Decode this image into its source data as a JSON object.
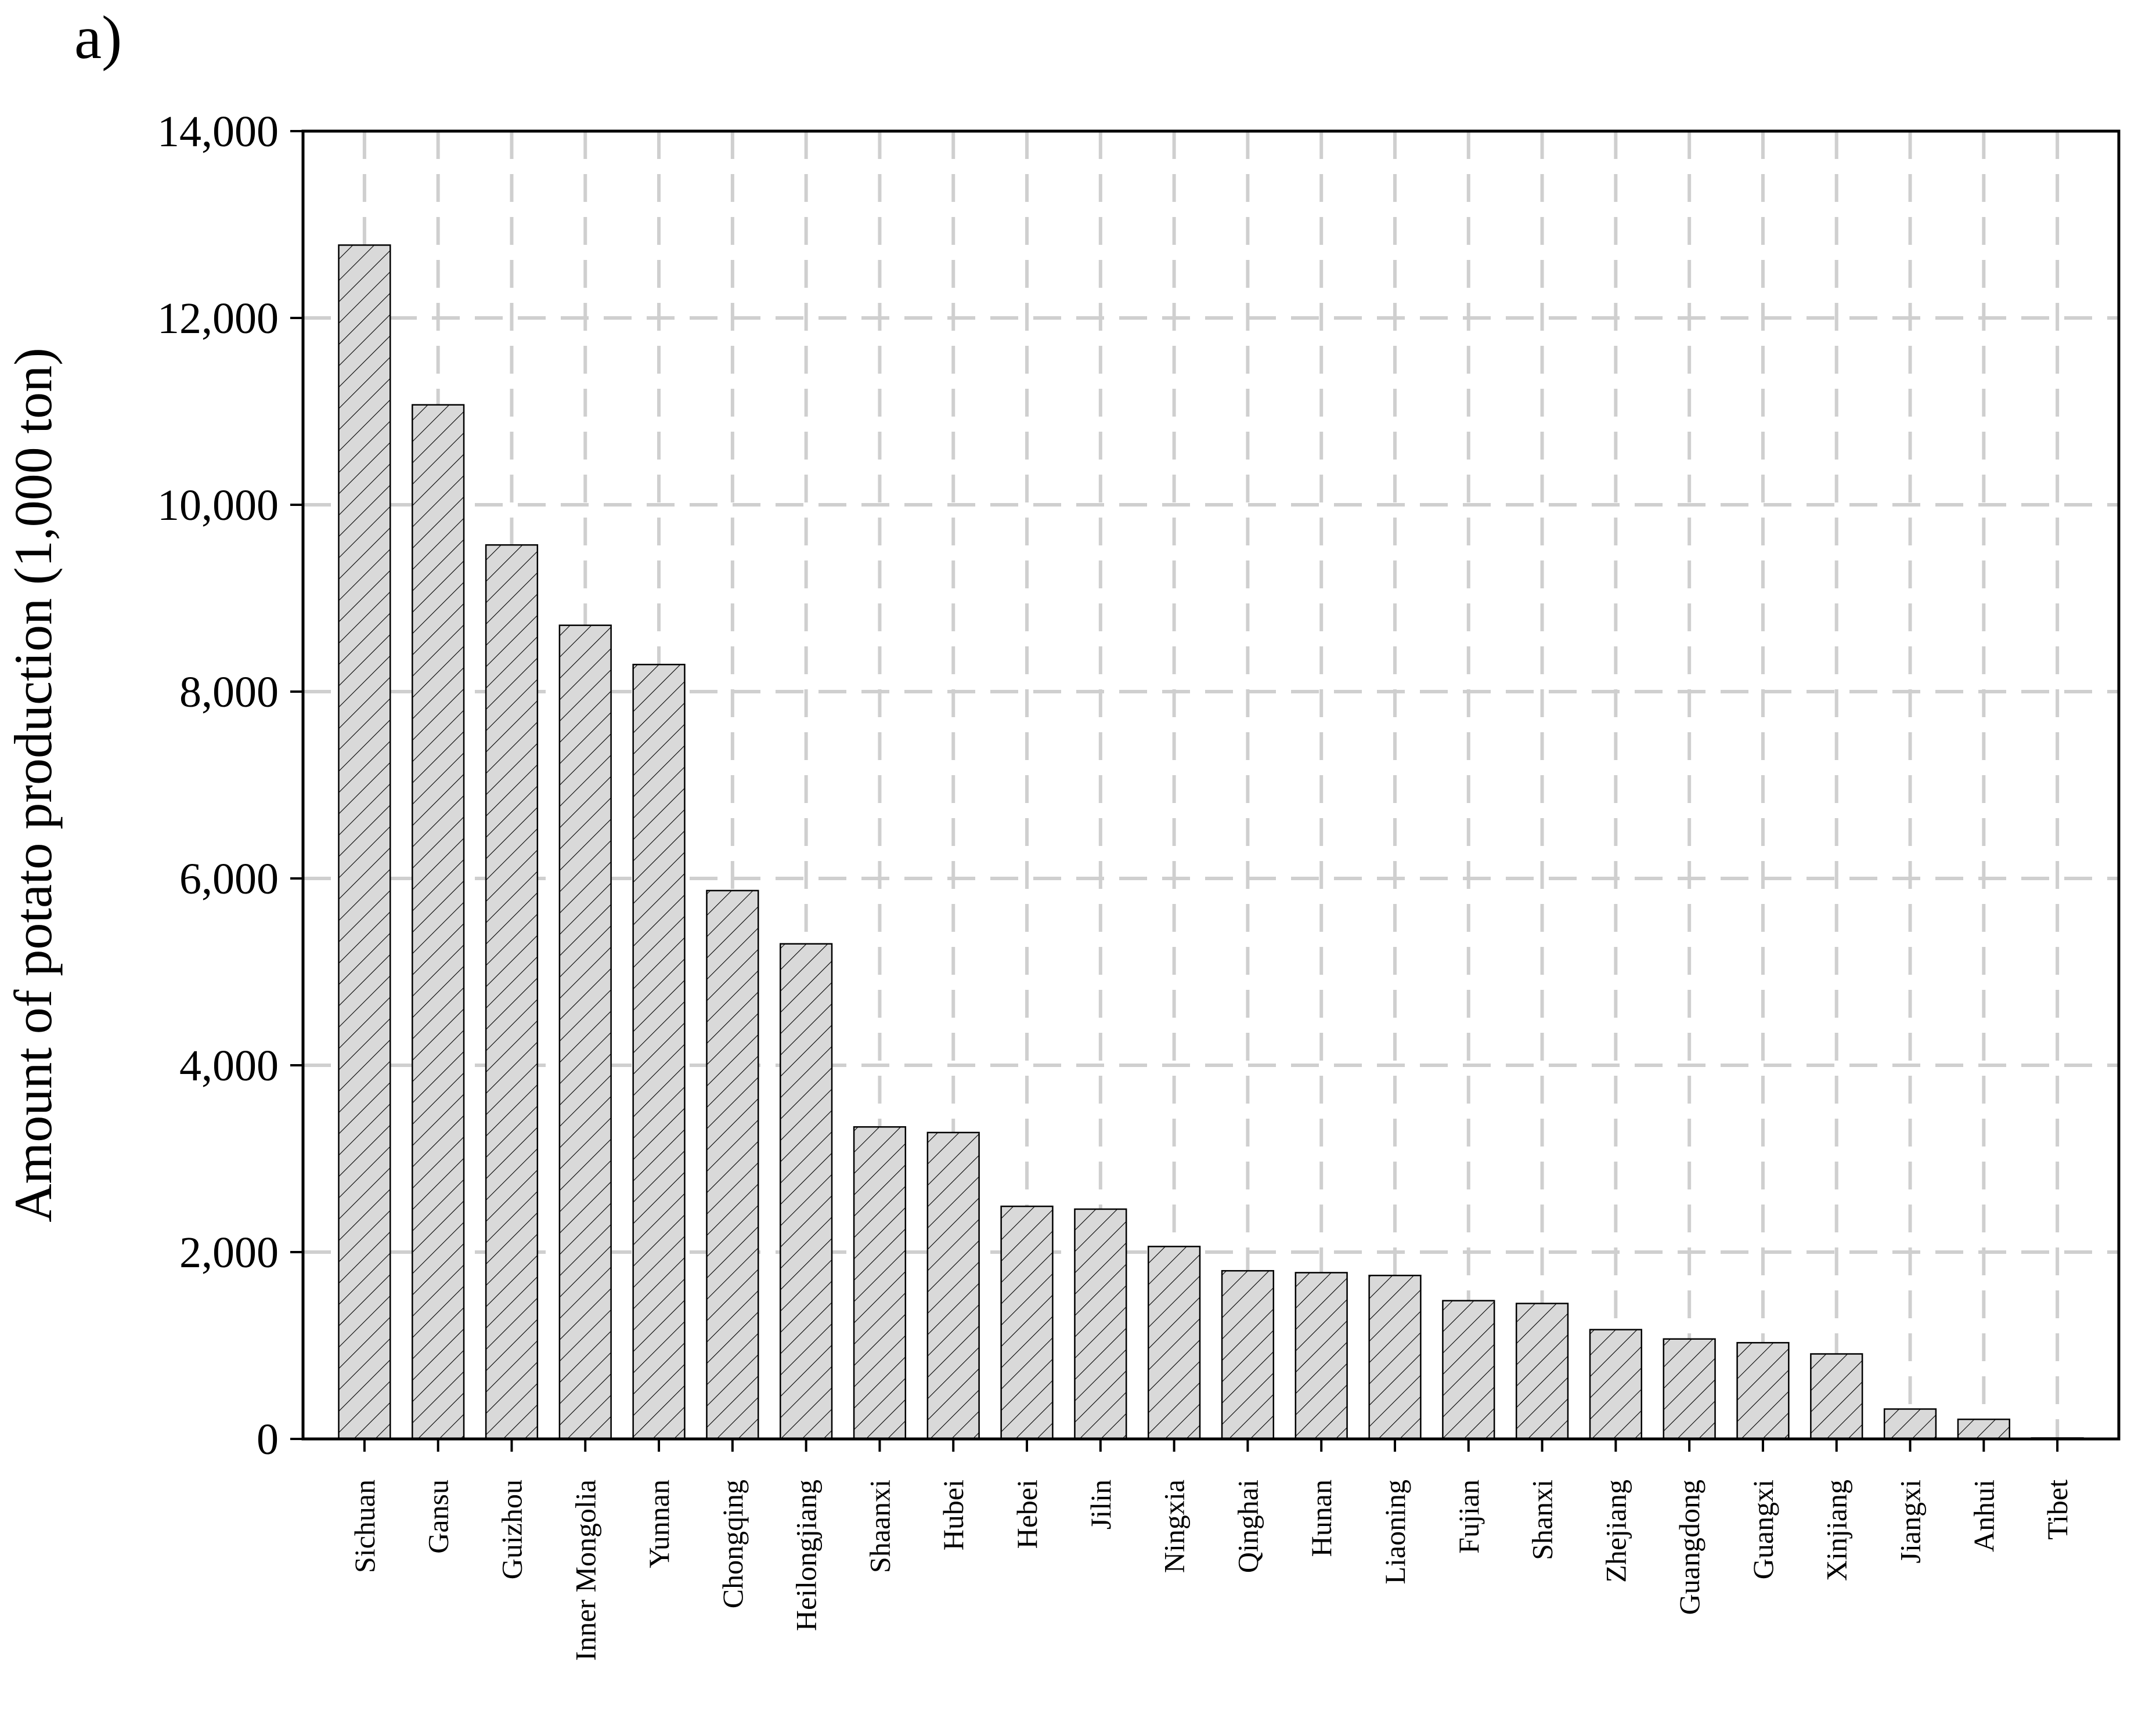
{
  "panel_label": "a)",
  "chart_data": {
    "type": "bar",
    "title": "",
    "xlabel": "",
    "ylabel": "Amount of potato production (1,000 ton)",
    "ylim": [
      0,
      14000
    ],
    "yticks": [
      "0",
      "2,000",
      "4,000",
      "6,000",
      "8,000",
      "10,000",
      "12,000",
      "14,000"
    ],
    "grid": true,
    "categories": [
      "Sichuan",
      "Gansu",
      "Guizhou",
      "Inner Mongolia",
      "Yunnan",
      "Chongqing",
      "Heilongjiang",
      "Shaanxi",
      "Hubei",
      "Hebei",
      "Jilin",
      "Ningxia",
      "Qinghai",
      "Hunan",
      "Liaoning",
      "Fujian",
      "Shanxi",
      "Zhejiang",
      "Guangdong",
      "Guangxi",
      "Xinjiang",
      "Jiangxi",
      "Anhui",
      "Tibet"
    ],
    "values": [
      12780,
      11070,
      9570,
      8710,
      8290,
      5870,
      5300,
      3340,
      3280,
      2490,
      2460,
      2060,
      1800,
      1780,
      1750,
      1480,
      1450,
      1170,
      1070,
      1030,
      910,
      320,
      210,
      10
    ],
    "colors": {
      "bar_fill": "#d9d9d9",
      "hatch": "#000000",
      "grid": "#cfcfcf"
    }
  }
}
